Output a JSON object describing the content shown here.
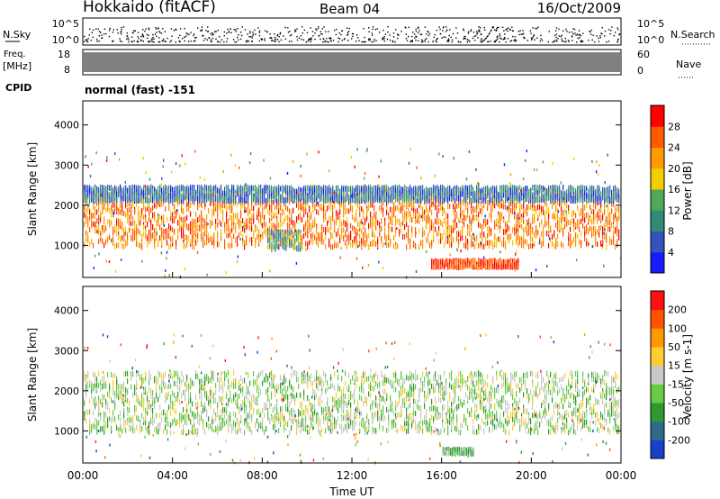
{
  "header": {
    "title": "Hokkaido (fitACF)",
    "beam": "Beam 04",
    "date": "16/Oct/2009"
  },
  "nsky": {
    "label": "N.Sky",
    "ticks": [
      "10^5",
      "10^0"
    ],
    "right_label": "N.Search",
    "right_ticks": [
      "10^5",
      "10^0"
    ]
  },
  "freq": {
    "label_line1": "Freq.",
    "label_line2": "[MHz]",
    "ticks": [
      "18",
      "8"
    ],
    "right_label": "Nave",
    "right_ticks": [
      "60",
      "0"
    ]
  },
  "cpid": {
    "label": "CPID",
    "mode": "normal (fast) -151"
  },
  "chart_data": [
    {
      "type": "heatmap",
      "name": "power",
      "ylabel": "Slant Range [km]",
      "yticks": [
        1000,
        2000,
        3000,
        4000
      ],
      "ylim": [
        200,
        4600
      ],
      "colorbar": {
        "label": "Power [dB]",
        "ticks": [
          "4",
          "8",
          "12",
          "16",
          "20",
          "24",
          "28"
        ],
        "colors": [
          "#1a1aff",
          "#3355bb",
          "#2f8a7a",
          "#52a85a",
          "#f2ce00",
          "#ff9a00",
          "#ff5a00",
          "#ff0000"
        ]
      },
      "bands": [
        {
          "x": [
            0,
            24
          ],
          "y": [
            950,
            2300
          ],
          "level": 6
        },
        {
          "x": [
            0,
            24
          ],
          "y": [
            2100,
            2450
          ],
          "level": 2
        },
        {
          "x": [
            8.2,
            9.8
          ],
          "y": [
            900,
            1350
          ],
          "level": 3
        },
        {
          "x": [
            15.5,
            19.5
          ],
          "y": [
            450,
            620
          ],
          "level": 7
        }
      ]
    },
    {
      "type": "heatmap",
      "name": "velocity",
      "ylabel": "Slant Range [km]",
      "yticks": [
        1000,
        2000,
        3000,
        4000
      ],
      "ylim": [
        200,
        4600
      ],
      "colorbar": {
        "label": "Velocity [m s-1]",
        "ticks": [
          "200",
          "100",
          "50",
          "15",
          "-15",
          "-50",
          "-100",
          "-200"
        ],
        "colors": [
          "#1a3fcc",
          "#2e6b8a",
          "#2e9a2e",
          "#66cc44",
          "#c8c8c8",
          "#ffcc33",
          "#ff9900",
          "#ff5500",
          "#ff1111"
        ]
      },
      "bands": [
        {
          "x": [
            0,
            24
          ],
          "y": [
            950,
            2450
          ],
          "level": 4
        },
        {
          "x": [
            16.0,
            17.5
          ],
          "y": [
            420,
            540
          ],
          "level": 3
        }
      ]
    }
  ],
  "time_axis": {
    "label": "Time UT",
    "ticks": [
      "00:00",
      "04:00",
      "08:00",
      "12:00",
      "16:00",
      "20:00",
      "00:00"
    ]
  }
}
